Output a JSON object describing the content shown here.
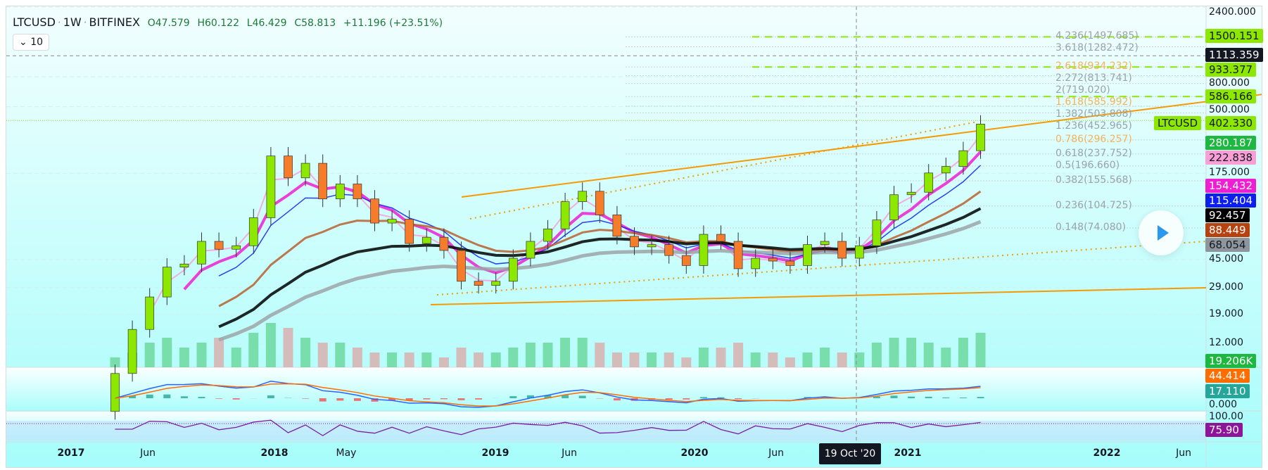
{
  "header": {
    "symbol": "LTCUSD",
    "interval": "1W",
    "exchange": "BITFINEX",
    "open": "O47.579",
    "high": "H60.122",
    "low": "L46.429",
    "close": "C58.813",
    "change": "+11.196 (+23.51%)",
    "indicators_collapsed": "10"
  },
  "price_axis": {
    "ticks": [
      "2400.000",
      "800.000",
      "500.000",
      "175.000",
      "45.000",
      "29.000",
      "19.000",
      "12.000"
    ],
    "tick_values": [
      2400,
      800,
      500,
      175,
      45,
      29,
      19,
      12
    ],
    "macd_ticks": [
      "0.000"
    ],
    "rsi_ticks": [
      "100.00"
    ],
    "labels": [
      {
        "text": "1500.151",
        "value": 1500.151,
        "bg": "#8de800",
        "fg": "#131722"
      },
      {
        "text": "1113.359",
        "value": 1113.359,
        "bg": "#131722",
        "fg": "#ffffff"
      },
      {
        "text": "933.377",
        "value": 933.377,
        "bg": "#8de800",
        "fg": "#131722"
      },
      {
        "text": "586.166",
        "value": 586.166,
        "bg": "#8de800",
        "fg": "#131722"
      },
      {
        "text": "402.330",
        "value": 402.33,
        "bg": "#8de800",
        "fg": "#131722",
        "prefix": "LTCUSD"
      },
      {
        "text": "280.187",
        "value": 280.187,
        "bg": "#1db83f",
        "fg": "#ffffff"
      },
      {
        "text": "222.838",
        "value": 222.838,
        "bg": "#f99fd6",
        "fg": "#131722"
      },
      {
        "text": "154.432",
        "value": 154.432,
        "bg": "#ee1fd3",
        "fg": "#ffffff"
      },
      {
        "text": "115.404",
        "value": 115.404,
        "bg": "#0d1ff0",
        "fg": "#ffffff"
      },
      {
        "text": "92.457",
        "value": 92.457,
        "bg": "#000000",
        "fg": "#ffffff"
      },
      {
        "text": "88.449",
        "value": 88.449,
        "bg": "#b8420f",
        "fg": "#ffffff"
      },
      {
        "text": "68.054",
        "value": 68.054,
        "bg": "#8f959c",
        "fg": "#131722"
      }
    ],
    "volume_label": "19.206K",
    "macd_labels": [
      {
        "text": "44.414",
        "bg": "#ff6d00"
      },
      {
        "text": "17.110",
        "bg": "#26a69a"
      }
    ],
    "rsi_label": "75.90"
  },
  "fib_levels": [
    {
      "text": "4.236(1497.685)",
      "value": 1497.685,
      "orange": false
    },
    {
      "text": "3.618(1282.472)",
      "value": 1282.472,
      "orange": false
    },
    {
      "text": "2.618(934.232)",
      "value": 934.232,
      "orange": true
    },
    {
      "text": "2.272(813.741)",
      "value": 813.741,
      "orange": false
    },
    {
      "text": "2(719.020)",
      "value": 719.02,
      "orange": false
    },
    {
      "text": "1.618(585.992)",
      "value": 585.992,
      "orange": true
    },
    {
      "text": "1.382(503.808)",
      "value": 503.808,
      "orange": false
    },
    {
      "text": "1.236(452.965)",
      "value": 452.965,
      "orange": false
    },
    {
      "text": "0.786(296.257)",
      "value": 296.257,
      "orange": true
    },
    {
      "text": "0.618(237.752)",
      "value": 237.752,
      "orange": false
    },
    {
      "text": "0.5(196.660)",
      "value": 196.66,
      "orange": false
    },
    {
      "text": "0.382(155.568)",
      "value": 155.568,
      "orange": false
    },
    {
      "text": "0.236(104.725)",
      "value": 104.725,
      "orange": false
    },
    {
      "text": "0.148(74.080)",
      "value": 74.08,
      "orange": false
    }
  ],
  "time_axis": {
    "labels": [
      {
        "text": "2017",
        "year": true
      },
      {
        "text": "Jun",
        "year": false
      },
      {
        "text": "2018",
        "year": true
      },
      {
        "text": "May",
        "year": false
      },
      {
        "text": "2019",
        "year": true
      },
      {
        "text": "Jun",
        "year": false
      },
      {
        "text": "2020",
        "year": true
      },
      {
        "text": "Jun",
        "year": false
      },
      {
        "text": "2021",
        "year": true
      },
      {
        "text": "2022",
        "year": true
      },
      {
        "text": "Jun",
        "year": false
      }
    ],
    "crosshair_date": "19 Oct '20"
  },
  "colors": {
    "up": "#8de800",
    "down": "#f57c2a",
    "background": "#a6fdfb"
  },
  "chart_data": {
    "type": "candlestick",
    "scale": "log",
    "ylim": [
      10,
      2600
    ],
    "grid": true,
    "note_period": "monthly approximation of weekly candles",
    "x": [
      "2017-03",
      "2017-04",
      "2017-05",
      "2017-06",
      "2017-07",
      "2017-08",
      "2017-09",
      "2017-10",
      "2017-11",
      "2017-12",
      "2018-01",
      "2018-02",
      "2018-03",
      "2018-04",
      "2018-05",
      "2018-06",
      "2018-07",
      "2018-08",
      "2018-09",
      "2018-10",
      "2018-11",
      "2018-12",
      "2019-01",
      "2019-02",
      "2019-03",
      "2019-04",
      "2019-05",
      "2019-06",
      "2019-07",
      "2019-08",
      "2019-09",
      "2019-10",
      "2019-11",
      "2019-12",
      "2020-01",
      "2020-02",
      "2020-03",
      "2020-04",
      "2020-05",
      "2020-06",
      "2020-07",
      "2020-08",
      "2020-09",
      "2020-10",
      "2020-11",
      "2020-12",
      "2021-01",
      "2021-02",
      "2021-03",
      "2021-04",
      "2021-05"
    ],
    "close": [
      7.5,
      15,
      25,
      40,
      42,
      60,
      53,
      56,
      87,
      230,
      163,
      205,
      117,
      148,
      117,
      80,
      85,
      58,
      64,
      52,
      32,
      30,
      32,
      46,
      60,
      73,
      112,
      132,
      91,
      65,
      55,
      57,
      48,
      41,
      67,
      60,
      39,
      46,
      44,
      41,
      57,
      60,
      46,
      56,
      84,
      125,
      130,
      176,
      195,
      250,
      380
    ],
    "volume": [
      2,
      3,
      5,
      6,
      4,
      5,
      6,
      4,
      7,
      9,
      8,
      6,
      5,
      5,
      4,
      3,
      3,
      3,
      3,
      2,
      4,
      3,
      3,
      4,
      5,
      5,
      6,
      6,
      5,
      3,
      3,
      3,
      3,
      2,
      4,
      4,
      5,
      3,
      3,
      2,
      3,
      4,
      3,
      3,
      5,
      6,
      6,
      5,
      4,
      6,
      7
    ]
  }
}
